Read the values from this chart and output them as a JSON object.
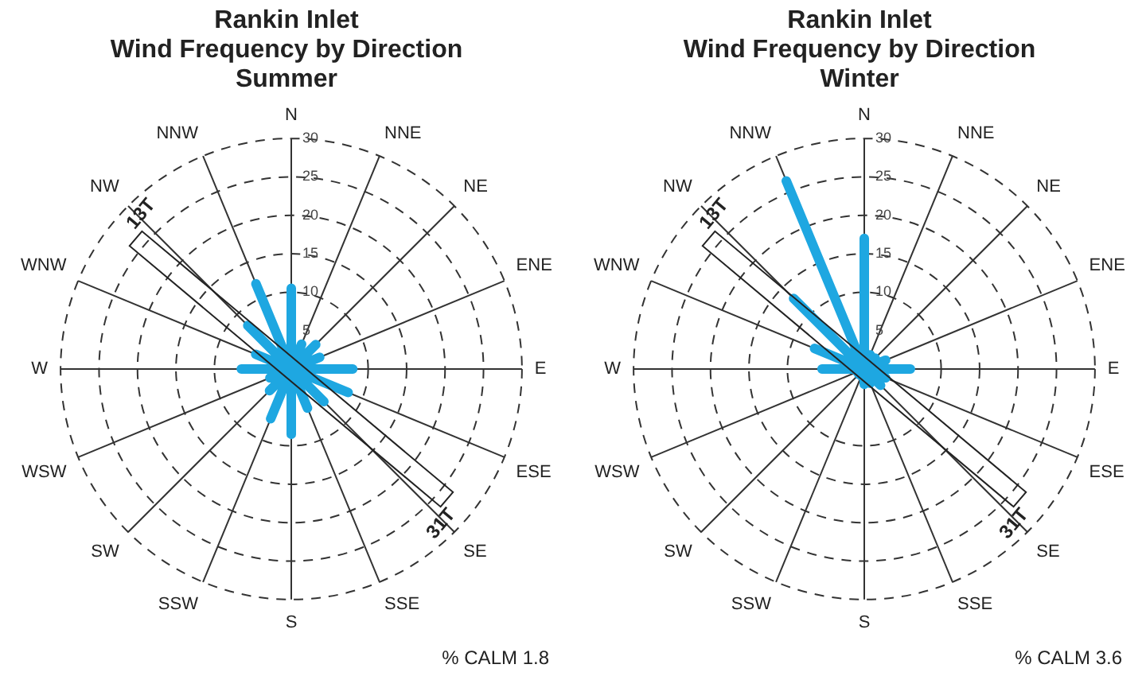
{
  "chart_data": [
    {
      "type": "radar",
      "title": "Rankin Inlet\nWind Frequency by Direction\nSummer",
      "categories": [
        "N",
        "NNE",
        "NE",
        "ENE",
        "E",
        "ESE",
        "SE",
        "SSE",
        "S",
        "SSW",
        "SW",
        "WSW",
        "W",
        "WNW",
        "NW",
        "NNW"
      ],
      "series": [
        {
          "color": "#1ea7e1",
          "values": [
            10.5,
            3.5,
            4.5,
            4,
            8,
            8,
            6,
            5.5,
            8.5,
            7,
            4,
            3,
            6.5,
            5,
            8,
            12
          ]
        }
      ],
      "ylim": [
        0,
        30
      ],
      "yticks": [
        5,
        10,
        15,
        20,
        25,
        30
      ],
      "grid": true,
      "legend": false,
      "annotations": [
        "% CALM 1.8",
        "13T",
        "31T"
      ]
    },
    {
      "type": "radar",
      "title": "Rankin Inlet\nWind Frequency by Direction\nWinter",
      "categories": [
        "N",
        "NNE",
        "NE",
        "ENE",
        "E",
        "ESE",
        "SE",
        "SSE",
        "S",
        "SSW",
        "SW",
        "WSW",
        "W",
        "WNW",
        "NW",
        "NNW"
      ],
      "series": [
        {
          "color": "#1ea7e1",
          "values": [
            17,
            2,
            2,
            3,
            6,
            3,
            3,
            2,
            2,
            1,
            1,
            1,
            5.5,
            7,
            13,
            26.5
          ]
        }
      ],
      "ylim": [
        0,
        30
      ],
      "yticks": [
        5,
        10,
        15,
        20,
        25,
        30
      ],
      "grid": true,
      "legend": false,
      "annotations": [
        "% CALM 3.6",
        "13T",
        "31T"
      ]
    }
  ]
}
